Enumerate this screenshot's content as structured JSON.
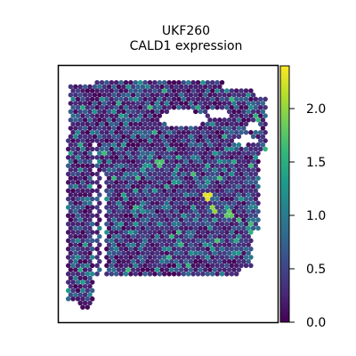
{
  "chart_data": {
    "type": "scatter",
    "subtype": "spatial-hexbin",
    "title": [
      "UKF260",
      "CALD1 expression"
    ],
    "xlabel": "",
    "ylabel": "",
    "axes_ticks": false,
    "colormap": "viridis",
    "colorbar": {
      "range": [
        0.0,
        2.4
      ],
      "ticks": [
        0.0,
        0.5,
        1.0,
        1.5,
        2.0
      ],
      "tick_labels": [
        "0.0",
        "0.5",
        "1.0",
        "1.5",
        "2.0"
      ],
      "placement": "right"
    },
    "value_distribution": {
      "background_value": 0.1,
      "typical_range": [
        0.0,
        1.3
      ],
      "max_value": 2.3,
      "high_spots": [
        {
          "x": 0.68,
          "y": 0.49,
          "value": 2.3
        },
        {
          "x": 0.71,
          "y": 0.44,
          "value": 2.0
        },
        {
          "x": 0.78,
          "y": 0.42,
          "value": 1.8
        },
        {
          "x": 0.46,
          "y": 0.62,
          "value": 1.7
        },
        {
          "x": 0.72,
          "y": 0.32,
          "value": 1.7
        }
      ]
    },
    "colors": {
      "viridis_stops": [
        "#440154",
        "#482878",
        "#3e4989",
        "#31688e",
        "#26828e",
        "#1f9e89",
        "#35b779",
        "#6ece58",
        "#b5de2b",
        "#fde725"
      ],
      "frame": "#000000"
    }
  }
}
